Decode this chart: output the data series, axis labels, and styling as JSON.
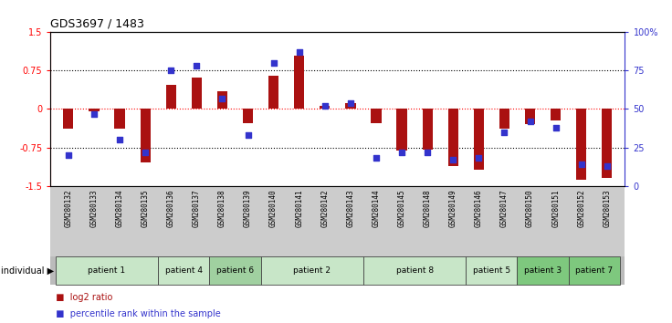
{
  "title": "GDS3697 / 1483",
  "samples": [
    "GSM280132",
    "GSM280133",
    "GSM280134",
    "GSM280135",
    "GSM280136",
    "GSM280137",
    "GSM280138",
    "GSM280139",
    "GSM280140",
    "GSM280141",
    "GSM280142",
    "GSM280143",
    "GSM280144",
    "GSM280145",
    "GSM280148",
    "GSM280149",
    "GSM280146",
    "GSM280147",
    "GSM280150",
    "GSM280151",
    "GSM280152",
    "GSM280153"
  ],
  "log2_ratio": [
    -0.38,
    -0.05,
    -0.38,
    -1.05,
    0.48,
    0.62,
    0.35,
    -0.28,
    0.65,
    1.05,
    0.07,
    0.12,
    -0.28,
    -0.82,
    -0.8,
    -1.12,
    -1.18,
    -0.38,
    -0.3,
    -0.22,
    -1.38,
    -1.35
  ],
  "percentile": [
    20,
    47,
    30,
    22,
    75,
    78,
    57,
    33,
    80,
    87,
    52,
    54,
    18,
    22,
    22,
    17,
    18,
    35,
    42,
    38,
    14,
    13
  ],
  "patient_groups": [
    {
      "label": "patient 1",
      "start": 0,
      "end": 3,
      "color": "#c8e6c8"
    },
    {
      "label": "patient 4",
      "start": 4,
      "end": 5,
      "color": "#c8e6c8"
    },
    {
      "label": "patient 6",
      "start": 6,
      "end": 7,
      "color": "#a0d0a0"
    },
    {
      "label": "patient 2",
      "start": 8,
      "end": 11,
      "color": "#c8e6c8"
    },
    {
      "label": "patient 8",
      "start": 12,
      "end": 15,
      "color": "#c8e6c8"
    },
    {
      "label": "patient 5",
      "start": 16,
      "end": 17,
      "color": "#c8e6c8"
    },
    {
      "label": "patient 3",
      "start": 18,
      "end": 19,
      "color": "#7ec87e"
    },
    {
      "label": "patient 7",
      "start": 20,
      "end": 21,
      "color": "#7ec87e"
    }
  ],
  "bar_color": "#aa1111",
  "dot_color": "#3333cc",
  "ylim_left": [
    -1.5,
    1.5
  ],
  "ylim_right": [
    0,
    100
  ],
  "yticks_left": [
    -1.5,
    -0.75,
    0,
    0.75,
    1.5
  ],
  "yticks_right": [
    0,
    25,
    50,
    75,
    100
  ],
  "hlines_dotted": [
    -0.75,
    0.75
  ],
  "hline_red": 0,
  "background_color": "#ffffff",
  "bar_width": 0.4,
  "dot_size": 18,
  "tick_label_bg": "#cccccc",
  "plot_bg": "#ffffff"
}
